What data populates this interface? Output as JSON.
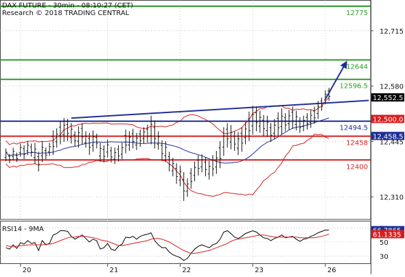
{
  "chart_data": [
    {
      "type": "candlestick",
      "title": "DAX FUTURE - 30min - 08:10:27 (CET)",
      "subtitle": "Research © 2018 TRADING CENTRAL",
      "ylim": [
        12255,
        12790
      ],
      "y_ticks": [
        12310,
        12445,
        12580,
        12715
      ],
      "y_tick_labels": [
        "12,310",
        "12,445",
        "12,580",
        "12,715"
      ],
      "x_ticks": [
        {
          "index": 4,
          "label": "20"
        },
        {
          "index": 28,
          "label": "21"
        },
        {
          "index": 48,
          "label": "22"
        },
        {
          "index": 68,
          "label": "23"
        },
        {
          "index": 88,
          "label": "26"
        }
      ],
      "price_bars": [
        [
          12428,
          12397
        ],
        [
          12415,
          12392
        ],
        [
          12430,
          12400
        ],
        [
          12418,
          12395
        ],
        [
          12440,
          12408
        ],
        [
          12436,
          12402
        ],
        [
          12446,
          12412
        ],
        [
          12440,
          12408
        ],
        [
          12442,
          12390
        ],
        [
          12420,
          12372
        ],
        [
          12446,
          12395
        ],
        [
          12430,
          12402
        ],
        [
          12442,
          12410
        ],
        [
          12472,
          12412
        ],
        [
          12477,
          12430
        ],
        [
          12494,
          12438
        ],
        [
          12502,
          12444
        ],
        [
          12500,
          12446
        ],
        [
          12490,
          12440
        ],
        [
          12470,
          12434
        ],
        [
          12482,
          12430
        ],
        [
          12490,
          12438
        ],
        [
          12470,
          12430
        ],
        [
          12466,
          12412
        ],
        [
          12472,
          12420
        ],
        [
          12464,
          12428
        ],
        [
          12442,
          12396
        ],
        [
          12436,
          12394
        ],
        [
          12450,
          12406
        ],
        [
          12432,
          12394
        ],
        [
          12430,
          12390
        ],
        [
          12436,
          12396
        ],
        [
          12442,
          12402
        ],
        [
          12474,
          12416
        ],
        [
          12470,
          12422
        ],
        [
          12476,
          12428
        ],
        [
          12466,
          12424
        ],
        [
          12474,
          12432
        ],
        [
          12480,
          12440
        ],
        [
          12486,
          12442
        ],
        [
          12508,
          12438
        ],
        [
          12496,
          12428
        ],
        [
          12470,
          12425
        ],
        [
          12448,
          12398
        ],
        [
          12446,
          12395
        ],
        [
          12420,
          12372
        ],
        [
          12405,
          12360
        ],
        [
          12392,
          12342
        ],
        [
          12386,
          12336
        ],
        [
          12370,
          12300
        ],
        [
          12355,
          12310
        ],
        [
          12380,
          12330
        ],
        [
          12396,
          12348
        ],
        [
          12412,
          12362
        ],
        [
          12414,
          12370
        ],
        [
          12406,
          12360
        ],
        [
          12398,
          12352
        ],
        [
          12412,
          12360
        ],
        [
          12422,
          12366
        ],
        [
          12446,
          12380
        ],
        [
          12480,
          12410
        ],
        [
          12490,
          12430
        ],
        [
          12485,
          12426
        ],
        [
          12470,
          12422
        ],
        [
          12468,
          12412
        ],
        [
          12480,
          12420
        ],
        [
          12492,
          12438
        ],
        [
          12518,
          12446
        ],
        [
          12532,
          12462
        ],
        [
          12530,
          12470
        ],
        [
          12520,
          12466
        ],
        [
          12510,
          12458
        ],
        [
          12508,
          12456
        ],
        [
          12490,
          12444
        ],
        [
          12500,
          12450
        ],
        [
          12516,
          12458
        ],
        [
          12526,
          12462
        ],
        [
          12514,
          12470
        ],
        [
          12522,
          12474
        ],
        [
          12530,
          12476
        ],
        [
          12520,
          12472
        ],
        [
          12504,
          12466
        ],
        [
          12508,
          12470
        ],
        [
          12514,
          12474
        ],
        [
          12522,
          12478
        ],
        [
          12530,
          12488
        ],
        [
          12544,
          12500
        ],
        [
          12552,
          12520
        ],
        [
          12570,
          12536
        ],
        [
          12576,
          12544
        ]
      ],
      "levels": [
        {
          "value": 12775,
          "label": "12775",
          "color": "#2a9d2a"
        },
        {
          "value": 12644,
          "label": "12644",
          "color": "#2a9d2a"
        },
        {
          "value": 12596.5,
          "label": "12596.5",
          "color": "#2a9d2a"
        },
        {
          "value": 12494.5,
          "label": "12494.5",
          "color": "#1f2f96"
        },
        {
          "value": 12458,
          "label": "12458",
          "color": "#d81e1e"
        },
        {
          "value": 12400,
          "label": "12400",
          "color": "#d81e1e"
        }
      ],
      "trendline": [
        [
          18,
          12502
        ],
        [
          100,
          12545
        ]
      ],
      "target_arrow": [
        [
          88,
          12548
        ],
        [
          94,
          12642
        ]
      ],
      "price_tags": [
        {
          "value": 12552.5,
          "label": "12,552.5",
          "bg": "#000000",
          "fg": "#ffffff"
        },
        {
          "value": 12500.0,
          "label": "12,500.0",
          "bg": "#d81e1e",
          "fg": "#ffffff"
        },
        {
          "value": 12458.5,
          "label": "12,458.5",
          "bg": "#1f2f96",
          "fg": "#ffffff"
        }
      ],
      "bollinger_bands": true,
      "moving_average_color": "#1f2f96",
      "band_color": "#d81e1e"
    },
    {
      "type": "line",
      "title": "RSI14 - 9MA",
      "ylim": [
        20,
        80
      ],
      "y_ticks": [
        70,
        50,
        30
      ],
      "y_tick_labels": [
        "70",
        "50",
        "30"
      ],
      "series": [
        {
          "name": "RSI14",
          "color": "#000000",
          "values": [
            42,
            40,
            46,
            41,
            49,
            47,
            52,
            48,
            49,
            38,
            52,
            46,
            48,
            60,
            62,
            66,
            66,
            65,
            58,
            54,
            57,
            60,
            55,
            50,
            54,
            52,
            40,
            42,
            48,
            40,
            38,
            44,
            47,
            57,
            56,
            58,
            54,
            58,
            60,
            61,
            63,
            52,
            46,
            42,
            42,
            36,
            32,
            30,
            28,
            24,
            27,
            34,
            40,
            44,
            46,
            44,
            42,
            46,
            48,
            54,
            64,
            66,
            62,
            57,
            55,
            58,
            62,
            64,
            66,
            64,
            60,
            56,
            55,
            52,
            55,
            57,
            60,
            56,
            57,
            58,
            54,
            51,
            54,
            55,
            58,
            60,
            63,
            65,
            66.8,
            67
          ]
        },
        {
          "name": "9MA",
          "color": "#d81e1e",
          "values": [
            45,
            44,
            44,
            44,
            45,
            45,
            46,
            46,
            46,
            46,
            46,
            47,
            47,
            48,
            50,
            52,
            54,
            56,
            57,
            57,
            58,
            58,
            58,
            57,
            56,
            55,
            53,
            52,
            51,
            49,
            47,
            45,
            45,
            46,
            47,
            48,
            49,
            50,
            51,
            52,
            54,
            55,
            55,
            54,
            52,
            50,
            47,
            44,
            41,
            38,
            36,
            34,
            34,
            35,
            36,
            37,
            38,
            40,
            42,
            44,
            46,
            48,
            51,
            53,
            54,
            55,
            56,
            57,
            58,
            59,
            60,
            60,
            59,
            58,
            57,
            57,
            57,
            57,
            57,
            57,
            57,
            56,
            56,
            56,
            56,
            56,
            57,
            58,
            59.5,
            61.1
          ]
        }
      ],
      "price_tags": [
        {
          "value": 66.7865,
          "label": "66.7865",
          "bg": "#1f2f96",
          "fg": "#ffffff"
        },
        {
          "value": 61.1335,
          "label": "61.1335",
          "bg": "#d81e1e",
          "fg": "#ffffff"
        }
      ]
    }
  ],
  "colors": {
    "grid": "#9aa0a6",
    "axis": "#444444",
    "text": "#111111",
    "bar": "#111111"
  }
}
